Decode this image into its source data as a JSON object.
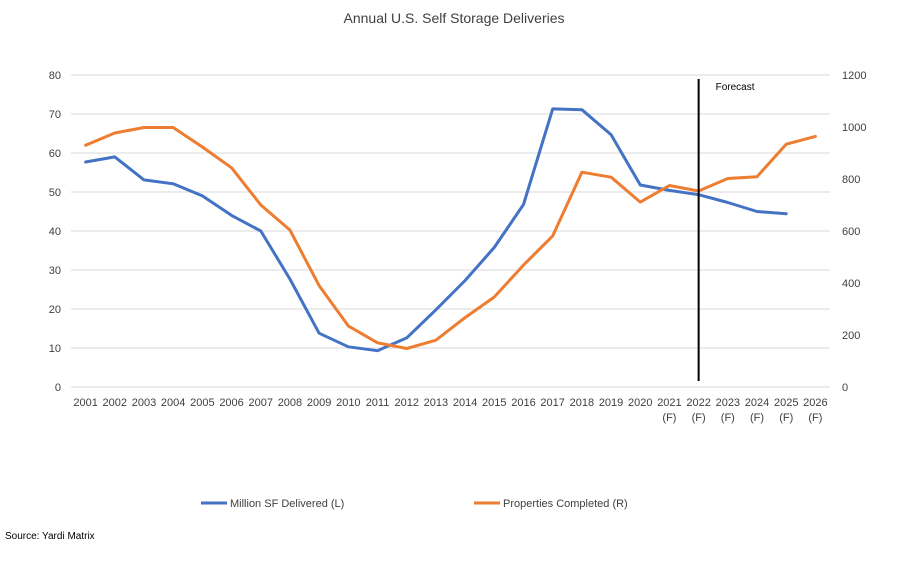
{
  "chart_data": {
    "type": "line",
    "title": "Annual U.S. Self Storage Deliveries",
    "categories": [
      "2001",
      "2002",
      "2003",
      "2004",
      "2005",
      "2006",
      "2007",
      "2008",
      "2009",
      "2010",
      "2011",
      "2012",
      "2013",
      "2014",
      "2015",
      "2016",
      "2017",
      "2018",
      "2019",
      "2020",
      "2021\n(F)",
      "2022\n(F)",
      "2023\n(F)",
      "2024\n(F)",
      "2025\n(F)",
      "2026\n(F)"
    ],
    "y_left": {
      "ylim": [
        0,
        80
      ],
      "ticks": [
        0,
        10,
        20,
        30,
        40,
        50,
        60,
        70,
        80
      ]
    },
    "y_right": {
      "ylim": [
        0,
        1200
      ],
      "ticks": [
        0,
        200,
        400,
        600,
        800,
        1000,
        1200
      ]
    },
    "grid": true,
    "legend_position": "bottom",
    "series": [
      {
        "name": "Million SF Delivered (L)",
        "axis": "left",
        "color": "#4472C4",
        "values": [
          57.7,
          59,
          53.1,
          52.1,
          49,
          44,
          40,
          27.7,
          13.8,
          10.3,
          9.3,
          12.6,
          19.8,
          27.3,
          35.8,
          46.8,
          71.3,
          71.1,
          64.7,
          51.8,
          50.4,
          49.3,
          47.3,
          45,
          44.4,
          null
        ]
      },
      {
        "name": "Properties Completed (R)",
        "axis": "right",
        "color": "#ED7D31",
        "values": [
          930,
          977,
          998,
          998,
          923,
          843,
          700,
          604,
          390,
          235,
          170,
          148,
          180,
          267,
          346,
          469,
          581,
          826,
          807,
          711,
          775,
          754,
          802,
          809,
          934,
          964
        ]
      }
    ],
    "forecast_marker": {
      "category": "2022\n(F)",
      "label": "Forecast"
    },
    "source": "Source: Yardi Matrix"
  }
}
